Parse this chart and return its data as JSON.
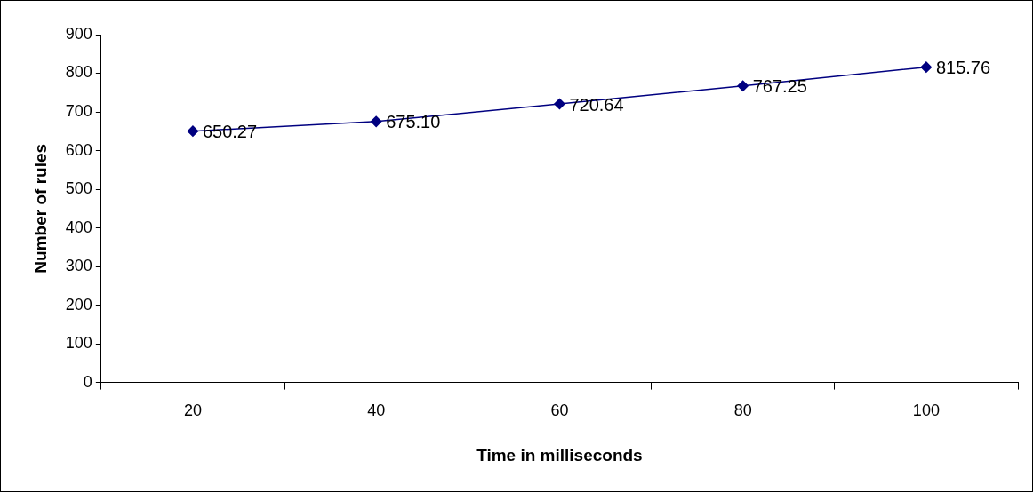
{
  "chart_data": {
    "type": "line",
    "xlabel": "Time in milliseconds",
    "ylabel": "Number of rules",
    "categories": [
      "20",
      "40",
      "60",
      "80",
      "100"
    ],
    "series": [
      {
        "color": "#000080",
        "values": [
          650.27,
          675.1,
          720.64,
          767.25,
          815.76
        ],
        "value_labels": [
          "650.27",
          "675.10",
          "720.64",
          "767.25",
          "815.76"
        ]
      }
    ],
    "ylim": [
      0,
      900
    ],
    "yticks": [
      0,
      100,
      200,
      300,
      400,
      500,
      600,
      700,
      800,
      900
    ],
    "grid": false,
    "legend": false,
    "marker": "diamond",
    "line_style": "solid"
  }
}
